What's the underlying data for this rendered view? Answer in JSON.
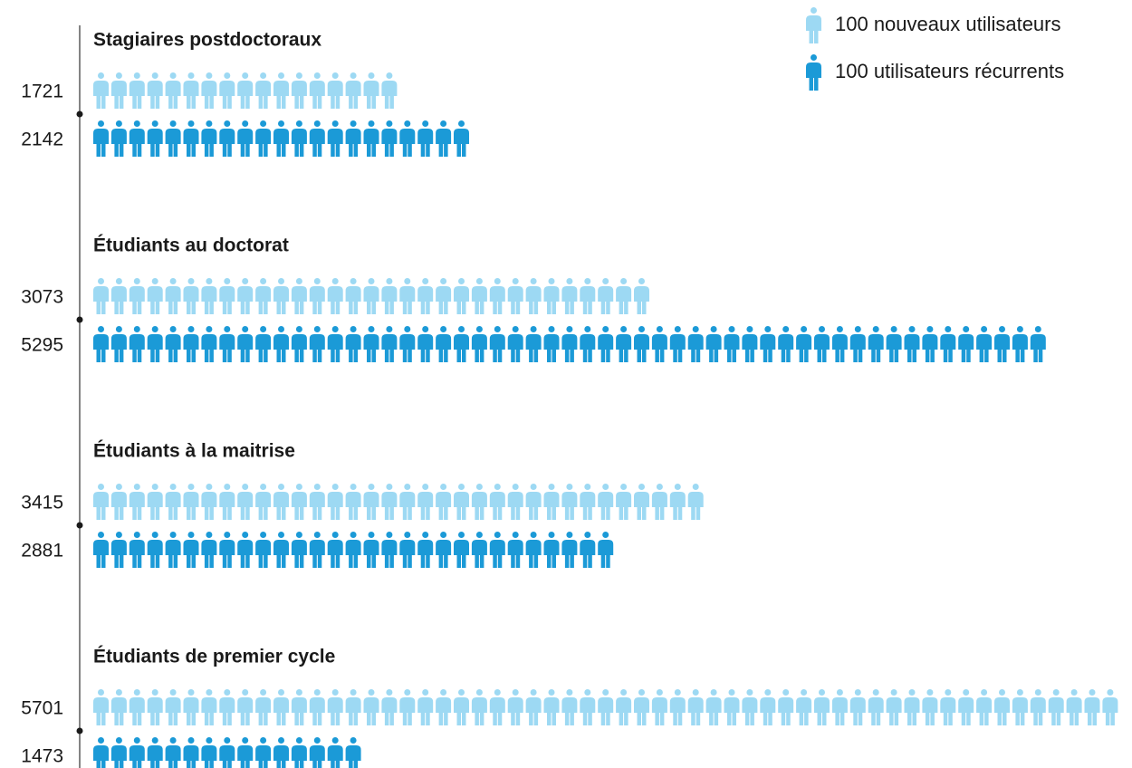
{
  "chart_data": {
    "type": "pictogram",
    "icon_unit": 100,
    "categories": [
      "Stagiaires postdoctoraux",
      "Étudiants au doctorat",
      "Étudiants à la maitrise",
      "Étudiants de premier cycle"
    ],
    "series": [
      {
        "name": "100 nouveaux utilisateurs",
        "color": "#9dd9f3",
        "values": [
          1721,
          3073,
          3415,
          5701
        ]
      },
      {
        "name": "100 utilisateurs récurrents",
        "color": "#1b9ad7",
        "values": [
          2142,
          5295,
          2881,
          1473
        ]
      }
    ]
  }
}
